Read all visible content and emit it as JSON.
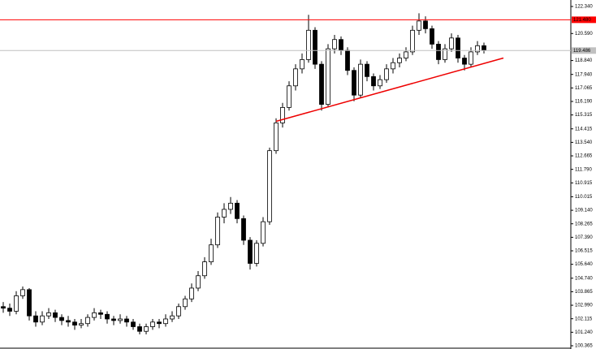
{
  "chart_data": {
    "type": "candlestick",
    "x": [
      0,
      1,
      2,
      3,
      4,
      5,
      6,
      7,
      8,
      9,
      10,
      11,
      12,
      13,
      14,
      15,
      16,
      17,
      18,
      19,
      20,
      21,
      22,
      23,
      24,
      25,
      26,
      27,
      28,
      29,
      30,
      31,
      32,
      33,
      34,
      35,
      36,
      37,
      38,
      39,
      40,
      41,
      42,
      43,
      44,
      45,
      46,
      47,
      48,
      49,
      50,
      51,
      52,
      53,
      54,
      55,
      56,
      57,
      58,
      59,
      60,
      61,
      62,
      63,
      64,
      65,
      66,
      67,
      68,
      69,
      70,
      71,
      72,
      73,
      74
    ],
    "open": [
      102.9,
      102.8,
      102.6,
      103.6,
      104.0,
      102.3,
      101.9,
      102.3,
      102.5,
      102.2,
      102.0,
      101.9,
      101.7,
      101.8,
      102.2,
      102.5,
      102.4,
      102.1,
      102.0,
      102.1,
      101.9,
      101.6,
      101.3,
      101.6,
      101.9,
      101.8,
      102.1,
      102.3,
      102.9,
      103.4,
      104.1,
      104.9,
      105.8,
      106.9,
      108.7,
      109.2,
      109.6,
      108.6,
      107.2,
      105.7,
      107.0,
      108.4,
      113.0,
      114.8,
      115.8,
      117.2,
      118.3,
      118.9,
      120.8,
      118.6,
      116.0,
      119.6,
      120.2,
      119.5,
      118.2,
      116.6,
      118.6,
      117.8,
      117.2,
      117.6,
      118.3,
      118.7,
      119.0,
      119.4,
      120.8,
      121.4,
      120.9,
      119.9,
      118.9,
      119.6,
      120.3,
      119.0,
      118.6,
      119.4,
      119.8
    ],
    "high": [
      103.2,
      103.1,
      103.9,
      104.2,
      104.1,
      102.6,
      102.6,
      102.8,
      102.7,
      102.4,
      102.3,
      102.1,
      102.1,
      102.4,
      102.8,
      102.7,
      102.6,
      102.3,
      102.4,
      102.3,
      102.1,
      101.8,
      101.8,
      102.1,
      102.1,
      102.4,
      102.6,
      103.1,
      103.6,
      104.4,
      105.2,
      106.1,
      107.3,
      109.0,
      109.6,
      110.0,
      109.8,
      108.8,
      107.4,
      107.2,
      108.7,
      113.2,
      115.1,
      116.1,
      117.5,
      118.6,
      119.3,
      121.8,
      121.0,
      118.8,
      119.9,
      120.5,
      120.4,
      119.7,
      118.4,
      118.9,
      118.8,
      118.0,
      117.9,
      118.6,
      119.0,
      119.3,
      119.7,
      121.1,
      121.9,
      121.7,
      121.1,
      120.1,
      119.9,
      120.6,
      120.5,
      119.2,
      119.7,
      120.1,
      120.0
    ],
    "low": [
      102.5,
      102.3,
      102.4,
      103.4,
      102.0,
      101.6,
      101.7,
      102.1,
      101.9,
      101.7,
      101.6,
      101.4,
      101.5,
      101.6,
      102.0,
      102.1,
      101.8,
      101.7,
      101.8,
      101.6,
      101.4,
      101.1,
      101.1,
      101.4,
      101.5,
      101.6,
      101.9,
      102.1,
      102.7,
      103.2,
      103.9,
      104.7,
      105.6,
      106.7,
      108.3,
      108.9,
      108.3,
      106.9,
      105.3,
      105.5,
      106.8,
      108.2,
      112.8,
      114.5,
      115.6,
      116.9,
      118.0,
      118.7,
      118.3,
      115.6,
      115.8,
      119.3,
      119.2,
      117.9,
      116.2,
      116.4,
      117.5,
      116.9,
      117.0,
      117.4,
      118.0,
      118.4,
      118.8,
      119.2,
      120.5,
      120.6,
      119.6,
      118.6,
      118.7,
      119.4,
      118.7,
      118.2,
      118.4,
      119.2,
      119.3
    ],
    "close": [
      102.8,
      102.6,
      103.6,
      104.0,
      102.3,
      101.9,
      102.3,
      102.5,
      102.2,
      102.0,
      101.9,
      101.7,
      101.8,
      102.2,
      102.5,
      102.4,
      102.1,
      102.0,
      102.1,
      101.9,
      101.6,
      101.3,
      101.6,
      101.9,
      101.8,
      102.1,
      102.3,
      102.9,
      103.4,
      104.1,
      104.9,
      105.8,
      106.9,
      108.7,
      109.2,
      109.6,
      108.6,
      107.2,
      105.7,
      107.0,
      108.4,
      113.0,
      114.8,
      115.8,
      117.2,
      118.3,
      118.9,
      120.8,
      118.6,
      116.0,
      119.6,
      120.2,
      119.5,
      118.2,
      116.6,
      118.6,
      117.8,
      117.2,
      117.6,
      118.3,
      118.7,
      119.0,
      119.4,
      120.8,
      121.4,
      120.9,
      119.9,
      118.9,
      119.6,
      120.3,
      119.0,
      118.6,
      119.4,
      119.8,
      119.5
    ],
    "xlim": [
      -0.5,
      87.375
    ],
    "ylim": [
      100.365,
      122.34
    ],
    "yticks": [
      {
        "value": 122.34,
        "label": "122.340"
      },
      {
        "value": 120.59,
        "label": "120.590"
      },
      {
        "value": 118.84,
        "label": "118.840"
      },
      {
        "value": 117.94,
        "label": "117.940"
      },
      {
        "value": 117.065,
        "label": "117.065"
      },
      {
        "value": 116.19,
        "label": "116.190"
      },
      {
        "value": 115.315,
        "label": "115.315"
      },
      {
        "value": 114.415,
        "label": "114.415"
      },
      {
        "value": 113.54,
        "label": "113.540"
      },
      {
        "value": 112.665,
        "label": "112.665"
      },
      {
        "value": 111.79,
        "label": "111.790"
      },
      {
        "value": 110.915,
        "label": "110.915"
      },
      {
        "value": 110.015,
        "label": "110.015"
      },
      {
        "value": 109.14,
        "label": "109.140"
      },
      {
        "value": 108.265,
        "label": "108.265"
      },
      {
        "value": 107.39,
        "label": "107.390"
      },
      {
        "value": 106.515,
        "label": "106.515"
      },
      {
        "value": 105.64,
        "label": "105.640"
      },
      {
        "value": 104.74,
        "label": "104.740"
      },
      {
        "value": 103.865,
        "label": "103.865"
      },
      {
        "value": 102.99,
        "label": "102.990"
      },
      {
        "value": 102.115,
        "label": "102.115"
      },
      {
        "value": 101.24,
        "label": "101.240"
      },
      {
        "value": 100.365,
        "label": "100.365"
      }
    ],
    "levels": [
      {
        "value": 121.48,
        "label": "121.480",
        "color": "#ff0000"
      },
      {
        "value": 119.486,
        "label": "119.486",
        "color": "#c0c0c0"
      }
    ],
    "trendline": {
      "x": [
        42,
        77
      ],
      "y": [
        114.9,
        119.0
      ],
      "color": "#ee0000"
    }
  }
}
